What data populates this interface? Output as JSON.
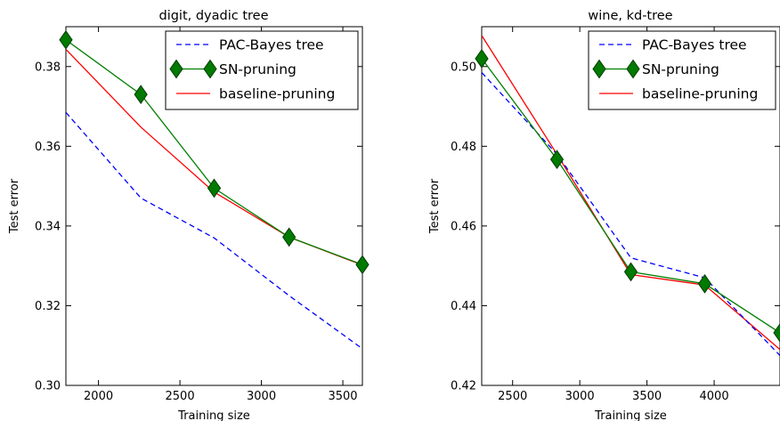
{
  "chart_data": [
    {
      "type": "line",
      "title": "digit, dyadic tree",
      "xlabel": "Training size",
      "ylabel": "Test error",
      "xlim": [
        1800,
        3620
      ],
      "ylim": [
        0.3,
        0.39
      ],
      "xticks": [
        2000,
        2500,
        3000,
        3500
      ],
      "xtick_labels": [
        "2000",
        "2500",
        "3000",
        "3500"
      ],
      "yticks": [
        0.3,
        0.32,
        0.34,
        0.36,
        0.38
      ],
      "ytick_labels": [
        "0.30",
        "0.32",
        "0.34",
        "0.36",
        "0.38"
      ],
      "legend_position": "top-right",
      "grid": false,
      "series": [
        {
          "name": "PAC-Bayes tree",
          "color": "#0000ff",
          "style": "dashed",
          "x": [
            1800,
            2260,
            2710,
            3170,
            3620
          ],
          "values": [
            0.3685,
            0.347,
            0.337,
            0.3225,
            0.3092
          ]
        },
        {
          "name": "SN-pruning",
          "color": "#008000",
          "style": "solid-diamond",
          "x": [
            1800,
            2260,
            2710,
            3170,
            3620
          ],
          "values": [
            0.3867,
            0.373,
            0.3495,
            0.3372,
            0.3303
          ]
        },
        {
          "name": "baseline-pruning",
          "color": "#ff0000",
          "style": "solid",
          "x": [
            1800,
            2260,
            2710,
            3170,
            3620
          ],
          "values": [
            0.3843,
            0.3648,
            0.3485,
            0.3372,
            0.3302
          ]
        }
      ]
    },
    {
      "type": "line",
      "title": "wine, kd-tree",
      "xlabel": "Training size",
      "ylabel": "Test error",
      "xlim": [
        2270,
        4490
      ],
      "ylim": [
        0.42,
        0.51
      ],
      "xticks": [
        2500,
        3000,
        3500,
        4000
      ],
      "xtick_labels": [
        "2500",
        "3000",
        "3500",
        "4000"
      ],
      "yticks": [
        0.42,
        0.44,
        0.46,
        0.48,
        0.5
      ],
      "ytick_labels": [
        "0.42",
        "0.44",
        "0.46",
        "0.48",
        "0.50"
      ],
      "legend_position": "top-right",
      "grid": false,
      "series": [
        {
          "name": "PAC-Bayes tree",
          "color": "#0000ff",
          "style": "dashed",
          "x": [
            2270,
            2830,
            3380,
            3930,
            4490
          ],
          "values": [
            0.4985,
            0.478,
            0.452,
            0.447,
            0.4275
          ]
        },
        {
          "name": "SN-pruning",
          "color": "#008000",
          "style": "solid-diamond",
          "x": [
            2270,
            2830,
            3380,
            3930,
            4490
          ],
          "values": [
            0.502,
            0.4767,
            0.4485,
            0.4455,
            0.4332
          ]
        },
        {
          "name": "baseline-pruning",
          "color": "#ff0000",
          "style": "solid",
          "x": [
            2270,
            2830,
            3380,
            3930,
            4490
          ],
          "values": [
            0.5078,
            0.478,
            0.4478,
            0.4452,
            0.429
          ]
        }
      ]
    }
  ]
}
